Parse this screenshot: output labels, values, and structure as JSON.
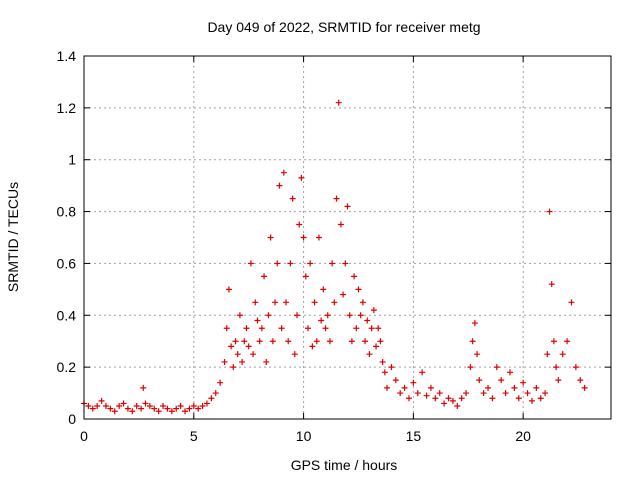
{
  "chart_data": {
    "type": "scatter",
    "title": "Day 049 of 2022, SRMTID for receiver metg",
    "xlabel": "GPS time / hours",
    "ylabel": "SRMTID / TECUs",
    "xlim": [
      0,
      24
    ],
    "ylim": [
      0,
      1.4
    ],
    "xticks": [
      0,
      5,
      10,
      15,
      20
    ],
    "xtick_labels": [
      "0",
      "5",
      "10",
      "15",
      "20"
    ],
    "yticks": [
      0,
      0.2,
      0.4,
      0.6,
      0.8,
      1,
      1.2,
      1.4
    ],
    "ytick_labels": [
      "0",
      "0.2",
      "0.4",
      "0.6",
      "0.8",
      "1",
      "1.2",
      "1.4"
    ],
    "grid": true,
    "marker": "+",
    "series": [
      {
        "name": "SRMTID",
        "color": "#e00000",
        "x": [
          0.0,
          0.2,
          0.4,
          0.6,
          0.8,
          1.0,
          1.2,
          1.4,
          1.6,
          1.8,
          2.0,
          2.2,
          2.4,
          2.6,
          2.7,
          2.8,
          3.0,
          3.2,
          3.4,
          3.6,
          3.8,
          4.0,
          4.2,
          4.4,
          4.6,
          4.8,
          5.0,
          5.2,
          5.4,
          5.6,
          5.8,
          6.0,
          6.2,
          6.4,
          6.5,
          6.6,
          6.7,
          6.8,
          6.9,
          7.0,
          7.1,
          7.2,
          7.3,
          7.4,
          7.5,
          7.6,
          7.7,
          7.8,
          7.9,
          8.0,
          8.1,
          8.2,
          8.3,
          8.4,
          8.5,
          8.6,
          8.7,
          8.8,
          8.9,
          9.0,
          9.1,
          9.2,
          9.3,
          9.4,
          9.5,
          9.6,
          9.7,
          9.8,
          9.9,
          10.0,
          10.1,
          10.2,
          10.3,
          10.4,
          10.5,
          10.6,
          10.7,
          10.8,
          10.9,
          11.0,
          11.1,
          11.2,
          11.3,
          11.4,
          11.5,
          11.6,
          11.7,
          11.8,
          11.9,
          12.0,
          12.1,
          12.2,
          12.3,
          12.4,
          12.5,
          12.6,
          12.7,
          12.8,
          12.9,
          13.0,
          13.1,
          13.2,
          13.3,
          13.4,
          13.5,
          13.6,
          13.7,
          13.8,
          14.0,
          14.2,
          14.4,
          14.6,
          14.8,
          15.0,
          15.2,
          15.4,
          15.6,
          15.8,
          16.0,
          16.2,
          16.4,
          16.6,
          16.8,
          17.0,
          17.2,
          17.4,
          17.6,
          17.7,
          17.8,
          17.9,
          18.0,
          18.2,
          18.4,
          18.6,
          18.8,
          19.0,
          19.2,
          19.4,
          19.6,
          19.8,
          20.0,
          20.2,
          20.4,
          20.6,
          20.8,
          21.0,
          21.1,
          21.2,
          21.3,
          21.4,
          21.5,
          21.6,
          21.8,
          22.0,
          22.2,
          22.4,
          22.6,
          22.8
        ],
        "y": [
          0.06,
          0.05,
          0.04,
          0.05,
          0.07,
          0.05,
          0.04,
          0.03,
          0.05,
          0.06,
          0.04,
          0.03,
          0.05,
          0.04,
          0.12,
          0.06,
          0.05,
          0.04,
          0.03,
          0.05,
          0.04,
          0.03,
          0.04,
          0.05,
          0.03,
          0.04,
          0.05,
          0.04,
          0.05,
          0.06,
          0.08,
          0.1,
          0.14,
          0.22,
          0.35,
          0.5,
          0.28,
          0.2,
          0.3,
          0.25,
          0.4,
          0.22,
          0.3,
          0.35,
          0.28,
          0.6,
          0.25,
          0.45,
          0.38,
          0.3,
          0.35,
          0.55,
          0.22,
          0.4,
          0.7,
          0.3,
          0.45,
          0.6,
          0.9,
          0.35,
          0.95,
          0.45,
          0.3,
          0.6,
          0.85,
          0.25,
          0.4,
          0.75,
          0.93,
          0.7,
          0.55,
          0.35,
          0.6,
          0.28,
          0.45,
          0.3,
          0.7,
          0.38,
          0.5,
          0.35,
          0.4,
          0.3,
          0.6,
          0.45,
          0.85,
          1.22,
          0.75,
          0.48,
          0.6,
          0.82,
          0.4,
          0.3,
          0.55,
          0.35,
          0.5,
          0.4,
          0.45,
          0.3,
          0.38,
          0.25,
          0.35,
          0.42,
          0.28,
          0.35,
          0.3,
          0.22,
          0.18,
          0.12,
          0.2,
          0.15,
          0.1,
          0.12,
          0.08,
          0.14,
          0.1,
          0.18,
          0.09,
          0.12,
          0.08,
          0.1,
          0.06,
          0.08,
          0.07,
          0.05,
          0.08,
          0.1,
          0.2,
          0.3,
          0.37,
          0.25,
          0.15,
          0.1,
          0.12,
          0.08,
          0.2,
          0.15,
          0.1,
          0.18,
          0.12,
          0.08,
          0.14,
          0.1,
          0.07,
          0.12,
          0.08,
          0.1,
          0.25,
          0.8,
          0.52,
          0.3,
          0.2,
          0.15,
          0.25,
          0.3,
          0.45,
          0.2,
          0.15,
          0.12
        ]
      }
    ]
  }
}
